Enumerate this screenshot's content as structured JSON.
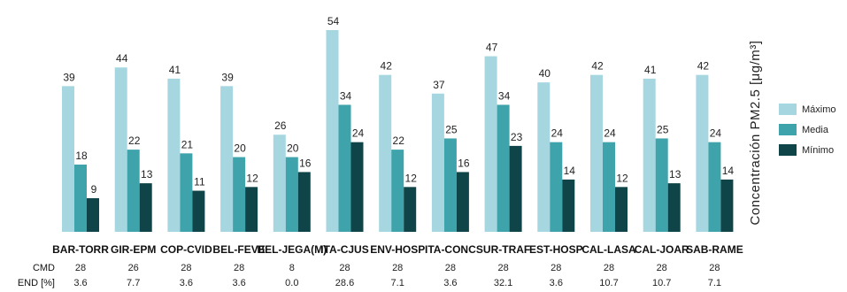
{
  "chart_data": {
    "type": "bar",
    "ylabel": "Concentración PM2.5 [μg/m³]",
    "ylim": [
      0,
      54
    ],
    "grid": false,
    "legend_position": "right",
    "categories": [
      "BAR-TORR",
      "GIR-EPM",
      "COP-CVID",
      "BEL-FEVE",
      "BEL-JEGA(M)",
      "ITA-CJUS",
      "ENV-HOSP",
      "ITA-CONC",
      "SUR-TRAF",
      "EST-HOSP",
      "CAL-LASA",
      "CAL-JOAR",
      "SAB-RAME"
    ],
    "series": [
      {
        "name": "Máximo",
        "color": "#a6d7e1",
        "values": [
          39,
          44,
          41,
          39,
          26,
          54,
          42,
          37,
          47,
          40,
          42,
          41,
          42
        ]
      },
      {
        "name": "Media",
        "color": "#3ea3ab",
        "values": [
          18,
          22,
          21,
          20,
          20,
          34,
          22,
          25,
          34,
          24,
          24,
          25,
          24
        ]
      },
      {
        "name": "Mínimo",
        "color": "#0f4548",
        "values": [
          9,
          13,
          11,
          12,
          16,
          24,
          12,
          16,
          23,
          14,
          12,
          13,
          14
        ]
      }
    ],
    "rows": [
      {
        "label": "CMD",
        "values": [
          "28",
          "26",
          "28",
          "28",
          "8",
          "28",
          "28",
          "28",
          "28",
          "28",
          "28",
          "28",
          "28"
        ]
      },
      {
        "label": "END [%]",
        "values": [
          "3.6",
          "7.7",
          "3.6",
          "3.6",
          "0.0",
          "28.6",
          "7.1",
          "3.6",
          "32.1",
          "3.6",
          "10.7",
          "10.7",
          "7.1"
        ]
      }
    ]
  }
}
